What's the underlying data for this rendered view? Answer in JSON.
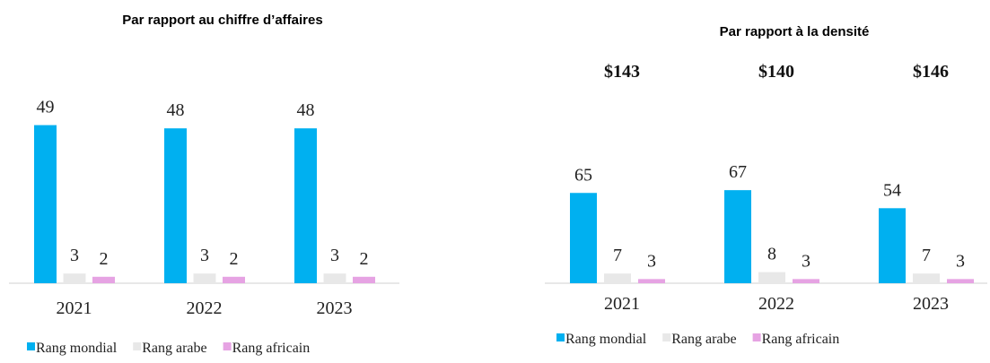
{
  "chart_data": [
    {
      "type": "bar",
      "title": "Par rapport au chiffre d’affaires",
      "categories": [
        "2021",
        "2022",
        "2023"
      ],
      "series": [
        {
          "name": "Rang mondial",
          "color": "#00b0f0",
          "values": [
            49,
            48,
            48
          ]
        },
        {
          "name": "Rang arabe",
          "color": "#e8e8e8",
          "values": [
            3,
            3,
            3
          ]
        },
        {
          "name": "Rang africain",
          "color": "#e6a3e3",
          "values": [
            2,
            2,
            2
          ]
        }
      ],
      "ylim": [
        0,
        50
      ],
      "legend": "bottom"
    },
    {
      "type": "bar",
      "title": "Par rapport à la densité",
      "categories": [
        "2021",
        "2022",
        "2023"
      ],
      "annotations": [
        "$143",
        "$140",
        "$146"
      ],
      "series": [
        {
          "name": "Rang mondial",
          "color": "#00b0f0",
          "values": [
            65,
            67,
            54
          ]
        },
        {
          "name": "Rang arabe",
          "color": "#e8e8e8",
          "values": [
            7,
            8,
            7
          ]
        },
        {
          "name": "Rang africain",
          "color": "#e6a3e3",
          "values": [
            3,
            3,
            3
          ]
        }
      ],
      "ylim": [
        0,
        70
      ],
      "legend": "bottom"
    }
  ]
}
